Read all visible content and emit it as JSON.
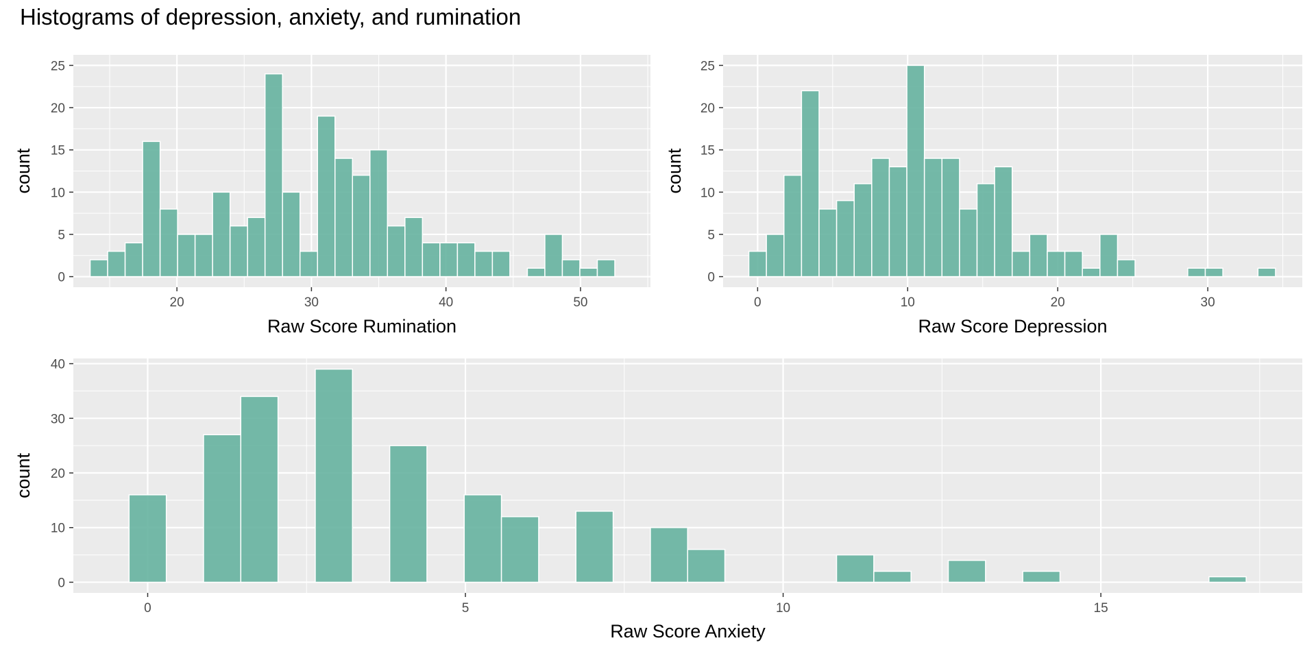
{
  "title": "Histograms of depression, anxiety, and rumination",
  "colors": {
    "bar_fill": "#66b2a0",
    "bar_stroke": "#ffffff",
    "panel_bg": "#ebebeb",
    "grid": "#ffffff",
    "tick_text": "#4d4d4d",
    "axis_tick": "#333333"
  },
  "chart_data": [
    {
      "type": "bar",
      "xlabel": "Raw Score Rumination",
      "ylabel": "count",
      "xlim": [
        12.3,
        55.2
      ],
      "ylim": [
        -1.25,
        26.25
      ],
      "xticks": [
        20,
        30,
        40,
        50
      ],
      "yticks": [
        0,
        5,
        10,
        15,
        20,
        25
      ],
      "grid": true,
      "bin_width": 1.3,
      "bins": [
        {
          "x": 14.2,
          "count": 2
        },
        {
          "x": 15.5,
          "count": 3
        },
        {
          "x": 16.8,
          "count": 4
        },
        {
          "x": 18.1,
          "count": 16
        },
        {
          "x": 19.4,
          "count": 8
        },
        {
          "x": 20.7,
          "count": 5
        },
        {
          "x": 22.0,
          "count": 5
        },
        {
          "x": 23.3,
          "count": 10
        },
        {
          "x": 24.6,
          "count": 6
        },
        {
          "x": 25.9,
          "count": 7
        },
        {
          "x": 27.2,
          "count": 24
        },
        {
          "x": 28.5,
          "count": 10
        },
        {
          "x": 29.8,
          "count": 3
        },
        {
          "x": 31.1,
          "count": 19
        },
        {
          "x": 32.4,
          "count": 14
        },
        {
          "x": 33.7,
          "count": 12
        },
        {
          "x": 35.0,
          "count": 15
        },
        {
          "x": 36.3,
          "count": 6
        },
        {
          "x": 37.6,
          "count": 7
        },
        {
          "x": 38.9,
          "count": 4
        },
        {
          "x": 40.2,
          "count": 4
        },
        {
          "x": 41.5,
          "count": 4
        },
        {
          "x": 42.8,
          "count": 3
        },
        {
          "x": 44.1,
          "count": 3
        },
        {
          "x": 45.4,
          "count": 0
        },
        {
          "x": 46.7,
          "count": 1
        },
        {
          "x": 48.0,
          "count": 5
        },
        {
          "x": 49.3,
          "count": 2
        },
        {
          "x": 50.6,
          "count": 1
        },
        {
          "x": 51.9,
          "count": 2
        }
      ]
    },
    {
      "type": "bar",
      "xlabel": "Raw Score Depression",
      "ylabel": "count",
      "xlim": [
        -2.3,
        36.3
      ],
      "ylim": [
        -1.25,
        26.25
      ],
      "xticks": [
        0,
        10,
        20,
        30
      ],
      "yticks": [
        0,
        5,
        10,
        15,
        20,
        25
      ],
      "grid": true,
      "bin_width": 1.17,
      "bins": [
        {
          "x": 0.0,
          "count": 3
        },
        {
          "x": 1.17,
          "count": 5
        },
        {
          "x": 2.34,
          "count": 12
        },
        {
          "x": 3.51,
          "count": 22
        },
        {
          "x": 4.68,
          "count": 8
        },
        {
          "x": 5.85,
          "count": 9
        },
        {
          "x": 7.02,
          "count": 11
        },
        {
          "x": 8.19,
          "count": 14
        },
        {
          "x": 9.36,
          "count": 13
        },
        {
          "x": 10.53,
          "count": 25
        },
        {
          "x": 11.7,
          "count": 14
        },
        {
          "x": 12.87,
          "count": 14
        },
        {
          "x": 14.04,
          "count": 8
        },
        {
          "x": 15.21,
          "count": 11
        },
        {
          "x": 16.38,
          "count": 13
        },
        {
          "x": 17.55,
          "count": 3
        },
        {
          "x": 18.72,
          "count": 5
        },
        {
          "x": 19.89,
          "count": 3
        },
        {
          "x": 21.06,
          "count": 3
        },
        {
          "x": 22.23,
          "count": 1
        },
        {
          "x": 23.4,
          "count": 5
        },
        {
          "x": 24.57,
          "count": 2
        },
        {
          "x": 25.74,
          "count": 0
        },
        {
          "x": 26.91,
          "count": 0
        },
        {
          "x": 28.08,
          "count": 0
        },
        {
          "x": 29.25,
          "count": 1
        },
        {
          "x": 30.42,
          "count": 1
        },
        {
          "x": 31.59,
          "count": 0
        },
        {
          "x": 32.76,
          "count": 0
        },
        {
          "x": 33.93,
          "count": 1
        }
      ]
    },
    {
      "type": "bar",
      "xlabel": "Raw Score Anxiety",
      "ylabel": "count",
      "xlim": [
        -1.17,
        18.17
      ],
      "ylim": [
        -1.95,
        40.95
      ],
      "xticks": [
        0,
        5,
        10,
        15
      ],
      "yticks": [
        0,
        10,
        20,
        30,
        40
      ],
      "grid": true,
      "bin_width": 0.586,
      "bins": [
        {
          "x": 0.0,
          "count": 16
        },
        {
          "x": 0.586,
          "count": 0
        },
        {
          "x": 1.172,
          "count": 27
        },
        {
          "x": 1.758,
          "count": 34
        },
        {
          "x": 2.344,
          "count": 0
        },
        {
          "x": 2.93,
          "count": 39
        },
        {
          "x": 3.516,
          "count": 0
        },
        {
          "x": 4.102,
          "count": 25
        },
        {
          "x": 4.688,
          "count": 0
        },
        {
          "x": 5.274,
          "count": 16
        },
        {
          "x": 5.86,
          "count": 12
        },
        {
          "x": 6.446,
          "count": 0
        },
        {
          "x": 7.032,
          "count": 13
        },
        {
          "x": 7.618,
          "count": 0
        },
        {
          "x": 8.204,
          "count": 10
        },
        {
          "x": 8.79,
          "count": 6
        },
        {
          "x": 9.376,
          "count": 0
        },
        {
          "x": 9.962,
          "count": 0
        },
        {
          "x": 10.548,
          "count": 0
        },
        {
          "x": 11.134,
          "count": 5
        },
        {
          "x": 11.72,
          "count": 2
        },
        {
          "x": 12.306,
          "count": 0
        },
        {
          "x": 12.892,
          "count": 4
        },
        {
          "x": 13.478,
          "count": 0
        },
        {
          "x": 14.064,
          "count": 2
        },
        {
          "x": 14.65,
          "count": 0
        },
        {
          "x": 15.236,
          "count": 0
        },
        {
          "x": 15.822,
          "count": 0
        },
        {
          "x": 16.408,
          "count": 0
        },
        {
          "x": 16.994,
          "count": 1
        }
      ]
    }
  ]
}
